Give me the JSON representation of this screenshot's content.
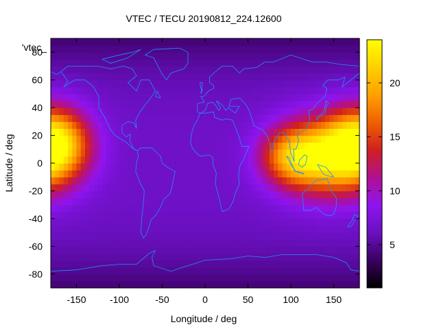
{
  "chart_data": {
    "type": "heatmap",
    "title": "VTEC / TECU 20190812_224.12600",
    "xlabel": "Longitude / deg",
    "ylabel": "Latitude / deg",
    "xlim": [
      -180,
      180
    ],
    "ylim": [
      -90,
      90
    ],
    "x_ticks": [
      -150,
      -100,
      -50,
      0,
      50,
      100,
      150
    ],
    "y_ticks": [
      -80,
      -60,
      -40,
      -20,
      0,
      20,
      40,
      60,
      80
    ],
    "colorbar": {
      "min": 1,
      "max": 24,
      "ticks": [
        5,
        10,
        15,
        20
      ]
    },
    "legend_label": "'vtec_",
    "coastline_color": "#1e90ff",
    "colormap": [
      "#000000",
      "#3a0060",
      "#6a10c0",
      "#8e14f0",
      "#b01090",
      "#d02020",
      "#f06000",
      "#ffa000",
      "#ffd000",
      "#ffff00"
    ],
    "peaks": [
      {
        "lon": -175,
        "lat": 15,
        "value": 20,
        "sigma_lon": 28,
        "sigma_lat": 18
      },
      {
        "lon": 145,
        "lat": 5,
        "value": 21,
        "sigma_lon": 40,
        "sigma_lat": 20
      },
      {
        "lon": 100,
        "lat": 5,
        "value": 15,
        "sigma_lon": 25,
        "sigma_lat": 14
      }
    ],
    "background_value": 6.5
  }
}
